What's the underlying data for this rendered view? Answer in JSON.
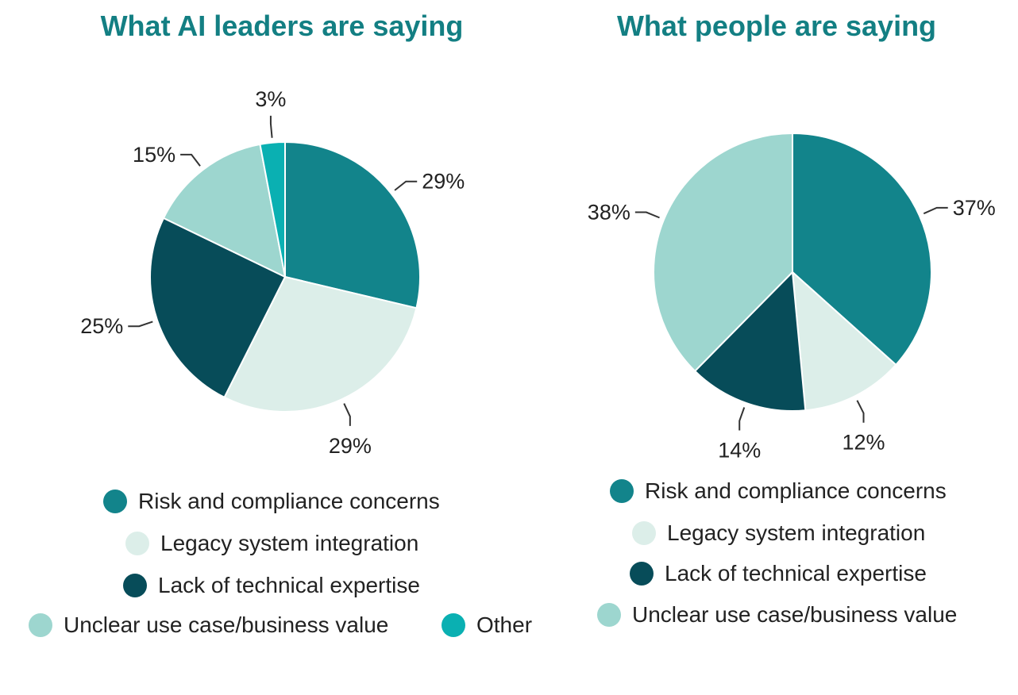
{
  "colors": {
    "risk": "#12848b",
    "legacy": "#dceee9",
    "expertise": "#074c59",
    "unclear": "#9dd6cf",
    "other": "#0ab0b2",
    "title": "#137f83"
  },
  "chart_data": [
    {
      "type": "pie",
      "title": "What AI leaders are saying",
      "slices": [
        {
          "key": "risk",
          "name": "Risk and compliance concerns",
          "value": 29,
          "label": "29%"
        },
        {
          "key": "legacy",
          "name": "Legacy system integration",
          "value": 29,
          "label": "29%"
        },
        {
          "key": "expertise",
          "name": "Lack of technical expertise",
          "value": 25,
          "label": "25%"
        },
        {
          "key": "unclear",
          "name": "Unclear use case/business value",
          "value": 15,
          "label": "15%"
        },
        {
          "key": "other",
          "name": "Other",
          "value": 3,
          "label": "3%"
        }
      ],
      "legend": [
        "Risk and compliance concerns",
        "Legacy system integration",
        "Lack of technical expertise",
        "Unclear use case/business value",
        "Other"
      ]
    },
    {
      "type": "pie",
      "title": "What people are saying",
      "slices": [
        {
          "key": "risk",
          "name": "Risk and compliance concerns",
          "value": 37,
          "label": "37%"
        },
        {
          "key": "legacy",
          "name": "Legacy system integration",
          "value": 12,
          "label": "12%"
        },
        {
          "key": "expertise",
          "name": "Lack of technical expertise",
          "value": 14,
          "label": "14%"
        },
        {
          "key": "unclear",
          "name": "Unclear use case/business value",
          "value": 38,
          "label": "38%"
        }
      ],
      "legend": [
        "Risk and compliance concerns",
        "Legacy system integration",
        "Lack of technical expertise",
        "Unclear use case/business value"
      ]
    }
  ]
}
